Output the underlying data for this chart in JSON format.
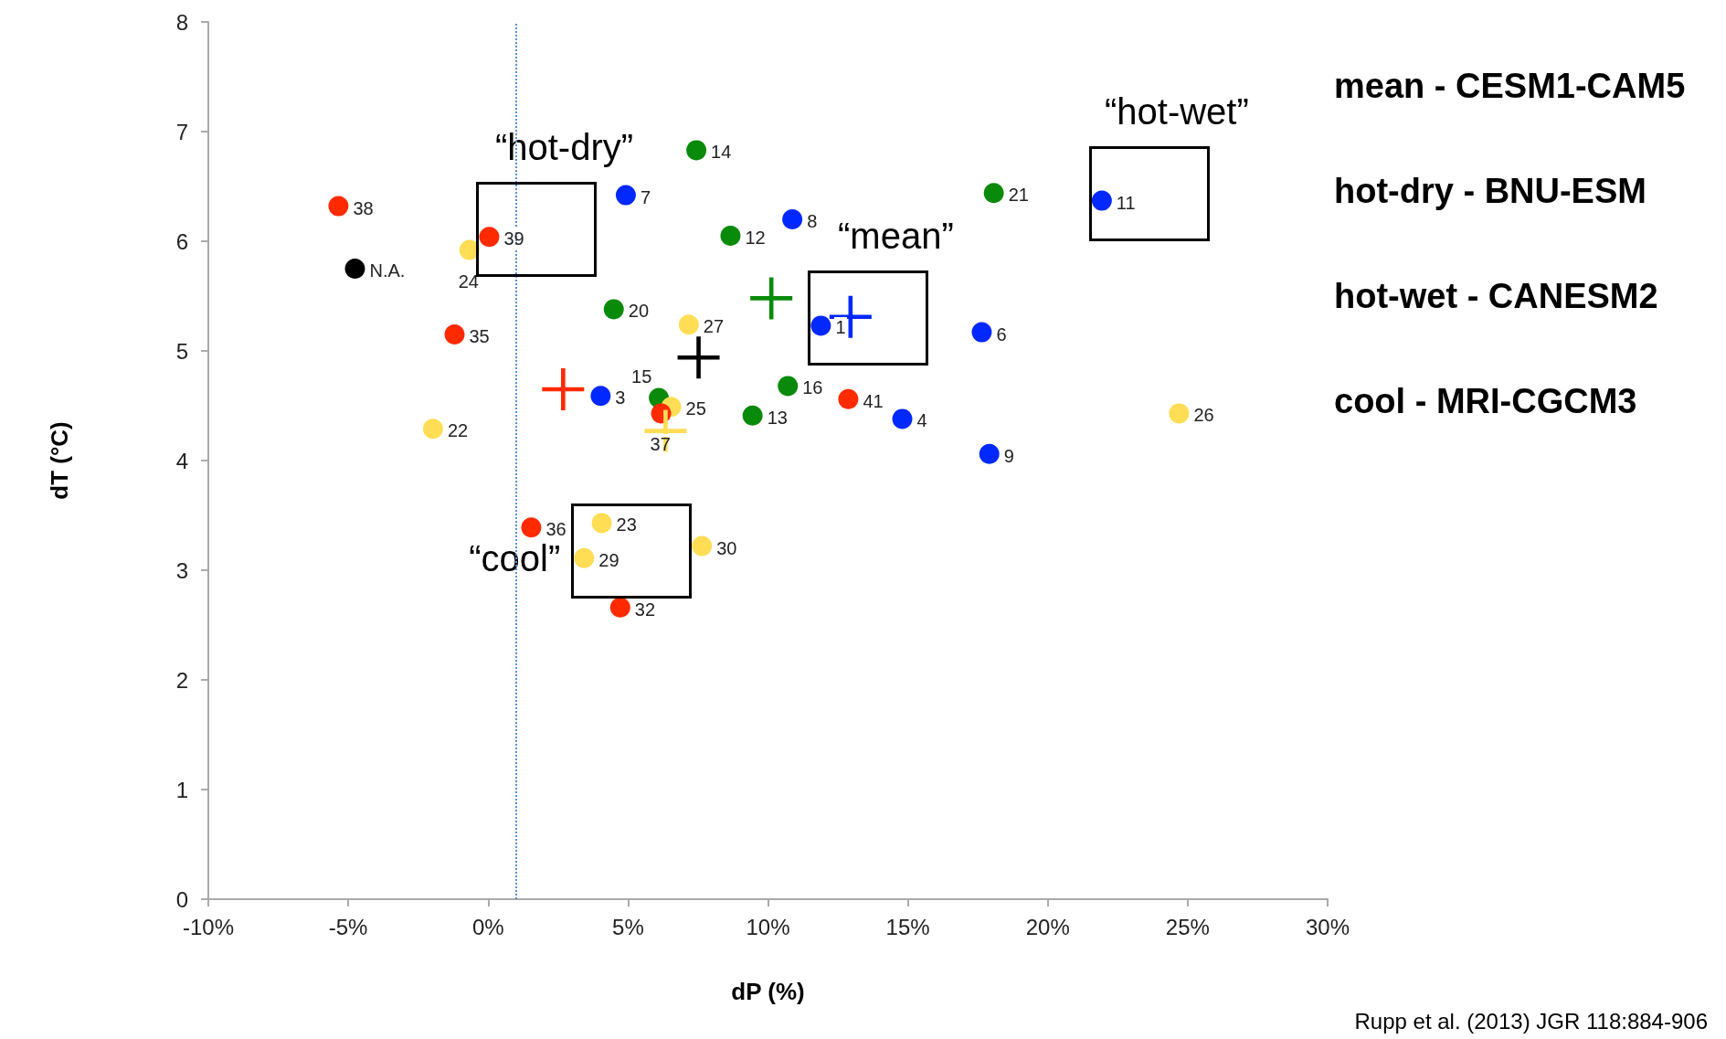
{
  "chart_data": {
    "type": "scatter",
    "xlabel": "dP (%)",
    "ylabel": "dT (°C)",
    "xlim": [
      -10,
      30
    ],
    "xticks": [
      {
        "value": -10,
        "label": "-10%"
      },
      {
        "value": -5,
        "label": "-5%"
      },
      {
        "value": 0,
        "label": "0%"
      },
      {
        "value": 5,
        "label": "5%"
      },
      {
        "value": 10,
        "label": "10%"
      },
      {
        "value": 15,
        "label": "15%"
      },
      {
        "value": 20,
        "label": "20%"
      },
      {
        "value": 25,
        "label": "25%"
      },
      {
        "value": 30,
        "label": "30%"
      }
    ],
    "ylim": [
      0,
      8
    ],
    "yticks": [
      0,
      1,
      2,
      3,
      4,
      5,
      6,
      7,
      8
    ],
    "marker": "circle",
    "ref_lines": [
      {
        "axis": "x",
        "value": 1,
        "color": "#5b8fd0",
        "line_style": "dotted"
      }
    ],
    "series": [
      {
        "color": "#0a8a0a",
        "x": [
          7.44,
          8.66,
          4.49,
          10.71,
          9.45,
          18.07,
          6.1
        ],
        "values": [
          6.83,
          6.05,
          5.38,
          4.68,
          4.41,
          6.44,
          4.57
        ]
      },
      {
        "color": "#ffdd55",
        "x": [
          -0.67,
          -1.97,
          7.17,
          6.54,
          4.06,
          3.43,
          7.64,
          24.69
        ],
        "values": [
          5.92,
          4.29,
          5.24,
          4.49,
          3.43,
          3.11,
          3.22,
          4.43
        ]
      },
      {
        "color": "#0028ff",
        "x": [
          4.92,
          10.87,
          11.89,
          17.64,
          4.02,
          14.8,
          17.91,
          21.93
        ],
        "values": [
          6.42,
          6.2,
          5.23,
          5.17,
          4.59,
          4.38,
          4.06,
          6.37
        ]
      },
      {
        "color": "#ff2a00",
        "x": [
          -5.35,
          0.04,
          -1.2,
          1.54,
          4.72,
          6.18,
          12.87
        ],
        "values": [
          6.32,
          6.04,
          5.15,
          3.39,
          2.66,
          4.43,
          4.56
        ]
      },
      {
        "color": "#000000",
        "x": [
          -4.76
        ],
        "values": [
          5.75
        ]
      },
      {
        "marker": "cross",
        "x": [
          10.12,
          12.95,
          7.52,
          2.68,
          6.34
        ],
        "values": [
          5.48,
          5.31,
          4.94,
          4.65,
          4.27
        ],
        "colors": [
          "#0a8a0a",
          "#0028ff",
          "#000000",
          "#ff2a00",
          "#ffdd55"
        ]
      }
    ],
    "annotations": [
      {
        "text": "25",
        "x": 6.54,
        "y": 4.49
      },
      {
        "text": "37",
        "x": 6.18,
        "y": 4.43
      },
      {
        "text": "15",
        "x": 6.1,
        "y": 4.57
      },
      {
        "text": "14",
        "x": 7.44,
        "y": 6.83
      },
      {
        "text": "12",
        "x": 8.66,
        "y": 6.05
      },
      {
        "text": "20",
        "x": 4.49,
        "y": 5.38
      },
      {
        "text": "16",
        "x": 10.71,
        "y": 4.68
      },
      {
        "text": "13",
        "x": 9.45,
        "y": 4.41
      },
      {
        "text": "21",
        "x": 18.07,
        "y": 6.44
      },
      {
        "text": "39",
        "x": 0.04,
        "y": 6.04
      },
      {
        "text": "24",
        "x": -0.67,
        "y": 5.92
      },
      {
        "text": "22",
        "x": -1.97,
        "y": 4.29
      },
      {
        "text": "27",
        "x": 7.17,
        "y": 5.24
      },
      {
        "text": "23",
        "x": 4.06,
        "y": 3.43
      },
      {
        "text": "29",
        "x": 3.43,
        "y": 3.11
      },
      {
        "text": "30",
        "x": 7.64,
        "y": 3.22
      },
      {
        "text": "26",
        "x": 24.69,
        "y": 4.43
      },
      {
        "text": "7",
        "x": 4.92,
        "y": 6.42
      },
      {
        "text": "8",
        "x": 10.87,
        "y": 6.2
      },
      {
        "text": "1",
        "x": 11.89,
        "y": 5.23
      },
      {
        "text": "6",
        "x": 17.64,
        "y": 5.17
      },
      {
        "text": "3",
        "x": 4.02,
        "y": 4.59
      },
      {
        "text": "4",
        "x": 14.8,
        "y": 4.38
      },
      {
        "text": "9",
        "x": 17.91,
        "y": 4.06
      },
      {
        "text": "11",
        "x": 21.93,
        "y": 6.37
      },
      {
        "text": "38",
        "x": -5.35,
        "y": 6.32
      },
      {
        "text": "35",
        "x": -1.2,
        "y": 5.15
      },
      {
        "text": "36",
        "x": 1.54,
        "y": 3.39
      },
      {
        "text": "32",
        "x": 4.72,
        "y": 2.66
      },
      {
        "text": "41",
        "x": 12.87,
        "y": 4.56
      },
      {
        "text": "N.A.",
        "x": -4.76,
        "y": 5.75
      },
      {
        "text": "“hot-dry”",
        "x": 0.04,
        "y": 6.04
      },
      {
        "text": "“mean”",
        "x": 11.89,
        "y": 5.23
      },
      {
        "text": "“hot-wet”",
        "x": 21.93,
        "y": 6.37
      },
      {
        "text": "“cool”",
        "x": 3.43,
        "y": 3.11
      },
      "mean - CESM1-CAM5",
      "hot-dry - BNU-ESM",
      "hot-wet - CANESM2",
      "cool - MRI-CGCM3",
      "Rupp et al. (2013) JGR 118:884-906"
    ]
  }
}
